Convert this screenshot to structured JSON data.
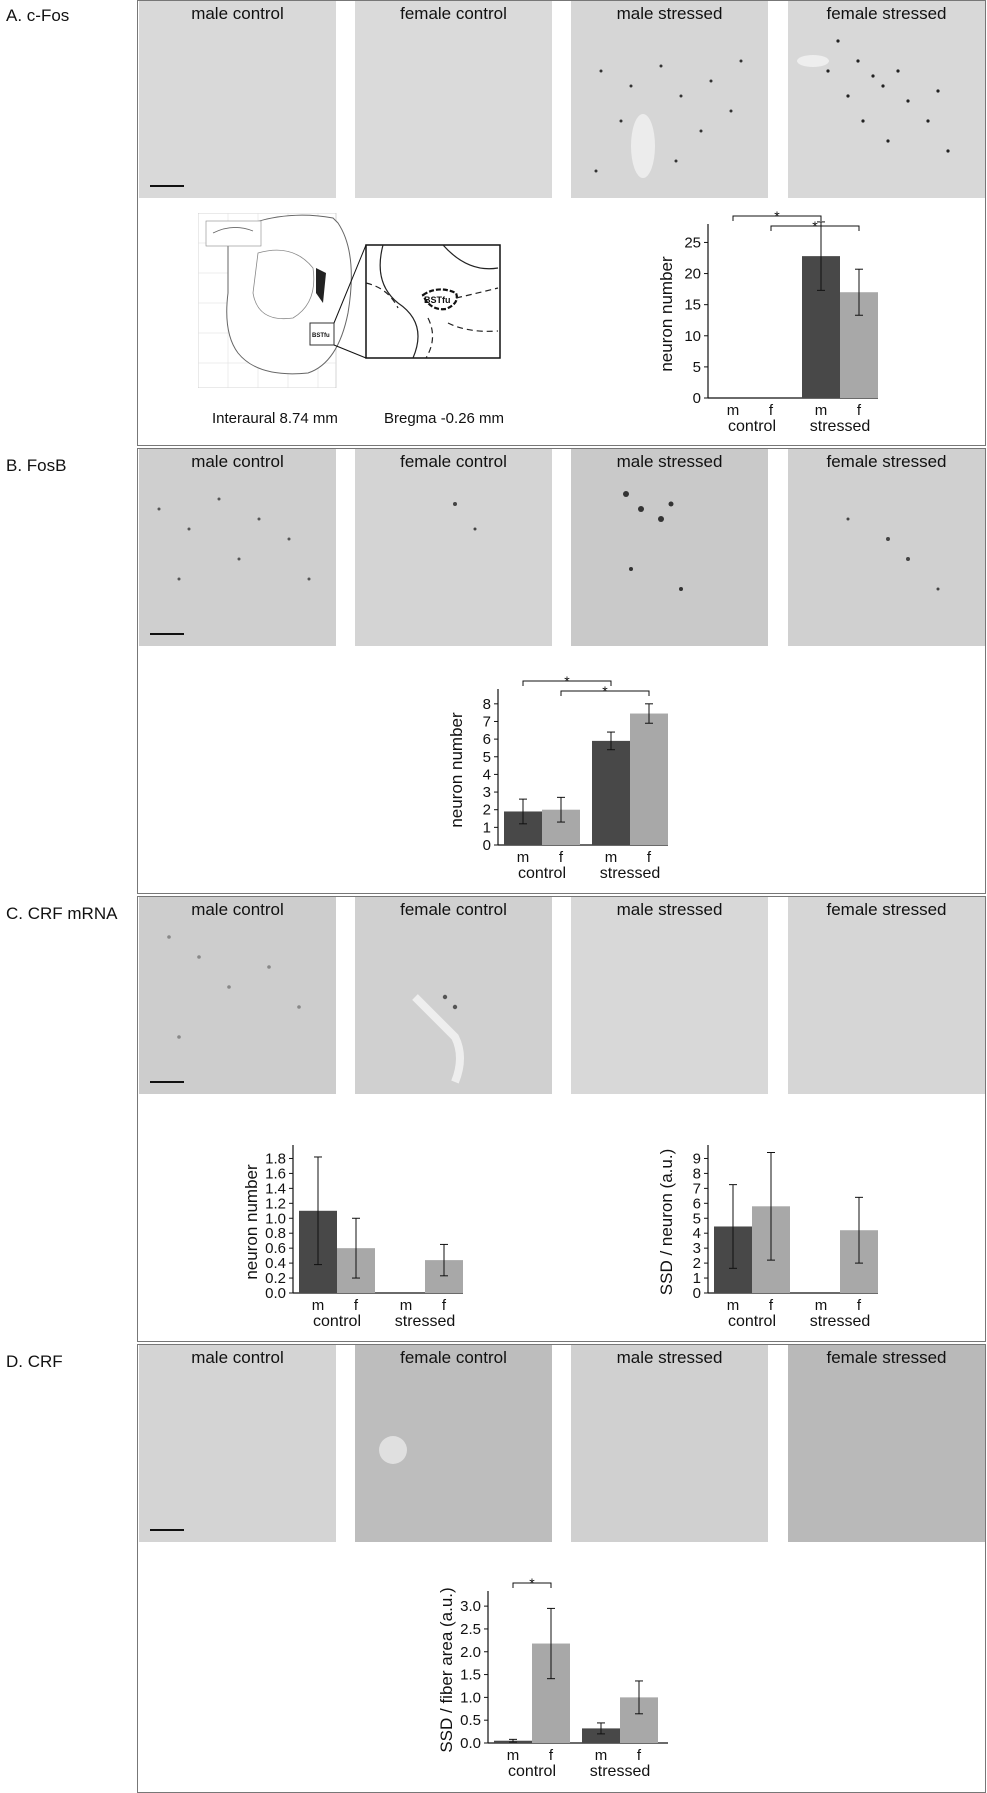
{
  "sections": [
    {
      "label": "A. c-Fos"
    },
    {
      "label": "B. FosB"
    },
    {
      "label": "C. CRF mRNA"
    },
    {
      "label": "D. CRF"
    }
  ],
  "image_captions": [
    "male control",
    "female control",
    "male stressed",
    "female stressed"
  ],
  "atlas": {
    "interaural": "Interaural 8.74 mm",
    "bregma": "Bregma -0.26 mm",
    "region_label": "BSTfu"
  },
  "colors": {
    "male": "#484848",
    "female": "#a8a8a8"
  },
  "chart_data": [
    {
      "type": "bar",
      "panel": "A",
      "categories": [
        "m",
        "f",
        "m",
        "f"
      ],
      "groups": [
        "control",
        "stressed"
      ],
      "values": [
        0,
        0,
        22.8,
        17
      ],
      "errors": [
        0,
        0,
        5.5,
        3.7
      ],
      "ylabel": "neuron number",
      "ylim": [
        0,
        27
      ],
      "yticks": [
        0,
        5,
        10,
        15,
        20,
        25
      ],
      "significance": [
        {
          "from": 0,
          "to": 2,
          "label": "*"
        },
        {
          "from": 1,
          "to": 3,
          "label": "*"
        }
      ]
    },
    {
      "type": "bar",
      "panel": "B",
      "categories": [
        "m",
        "f",
        "m",
        "f"
      ],
      "groups": [
        "control",
        "stressed"
      ],
      "values": [
        1.9,
        2.0,
        5.9,
        7.45
      ],
      "errors": [
        0.7,
        0.7,
        0.5,
        0.55
      ],
      "ylabel": "neuron number",
      "ylim": [
        0,
        8.5
      ],
      "yticks": [
        0,
        1,
        2,
        3,
        4,
        5,
        6,
        7,
        8
      ],
      "significance": [
        {
          "from": 0,
          "to": 2,
          "label": "*"
        },
        {
          "from": 1,
          "to": 3,
          "label": "*"
        }
      ]
    },
    {
      "type": "bar",
      "panel": "C-left",
      "categories": [
        "m",
        "f",
        "m",
        "f"
      ],
      "groups": [
        "control",
        "stressed"
      ],
      "values": [
        1.1,
        0.6,
        0,
        0.44
      ],
      "errors": [
        0.72,
        0.4,
        0,
        0.21
      ],
      "ylabel": "neuron number",
      "ylim": [
        0,
        1.9
      ],
      "yticks": [
        "0.0",
        "0.2",
        "0.4",
        "0.6",
        "0.8",
        "1.0",
        "1.2",
        "1.4",
        "1.6",
        "1.8"
      ],
      "significance": []
    },
    {
      "type": "bar",
      "panel": "C-right",
      "categories": [
        "m",
        "f",
        "m",
        "f"
      ],
      "groups": [
        "control",
        "stressed"
      ],
      "values": [
        4.45,
        5.8,
        0,
        4.2
      ],
      "errors": [
        2.8,
        3.6,
        0,
        2.2
      ],
      "ylabel": "SSD / neuron (a.u.)",
      "ylim": [
        0,
        9.5
      ],
      "yticks": [
        0,
        1,
        2,
        3,
        4,
        5,
        6,
        7,
        8,
        9
      ],
      "significance": []
    },
    {
      "type": "bar",
      "panel": "D",
      "categories": [
        "m",
        "f",
        "m",
        "f"
      ],
      "groups": [
        "control",
        "stressed"
      ],
      "values": [
        0.05,
        2.18,
        0.32,
        1.0
      ],
      "errors": [
        0.03,
        0.77,
        0.12,
        0.36
      ],
      "ylabel": "SSD / fiber area (a.u.)",
      "ylim": [
        0,
        3.2
      ],
      "yticks": [
        "0.0",
        "0.5",
        "1.0",
        "1.5",
        "2.0",
        "2.5",
        "3.0"
      ],
      "significance": [
        {
          "from": 0,
          "to": 1,
          "label": "*"
        }
      ]
    }
  ]
}
